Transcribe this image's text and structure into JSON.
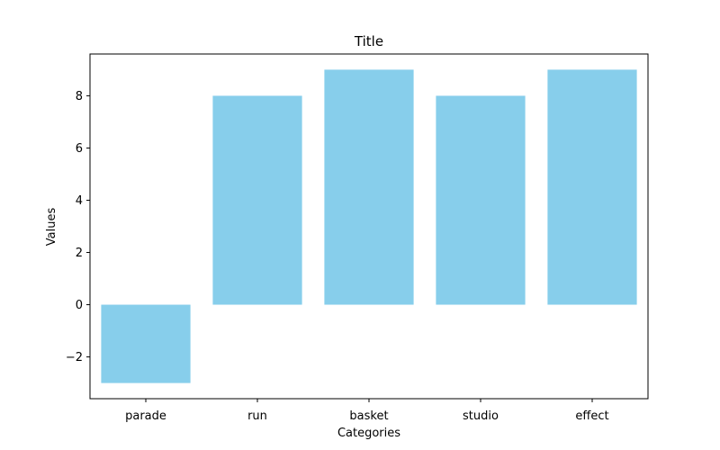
{
  "chart_data": {
    "type": "bar",
    "title": "Title",
    "xlabel": "Categories",
    "ylabel": "Values",
    "categories": [
      "parade",
      "run",
      "basket",
      "studio",
      "effect"
    ],
    "values": [
      -3,
      8,
      9,
      8,
      9
    ],
    "ylim": [
      -3.6,
      9.6
    ],
    "yticks": [
      -2,
      0,
      2,
      4,
      6,
      8
    ],
    "bar_color": "#87ceeb",
    "grid": false,
    "legend": "none"
  }
}
